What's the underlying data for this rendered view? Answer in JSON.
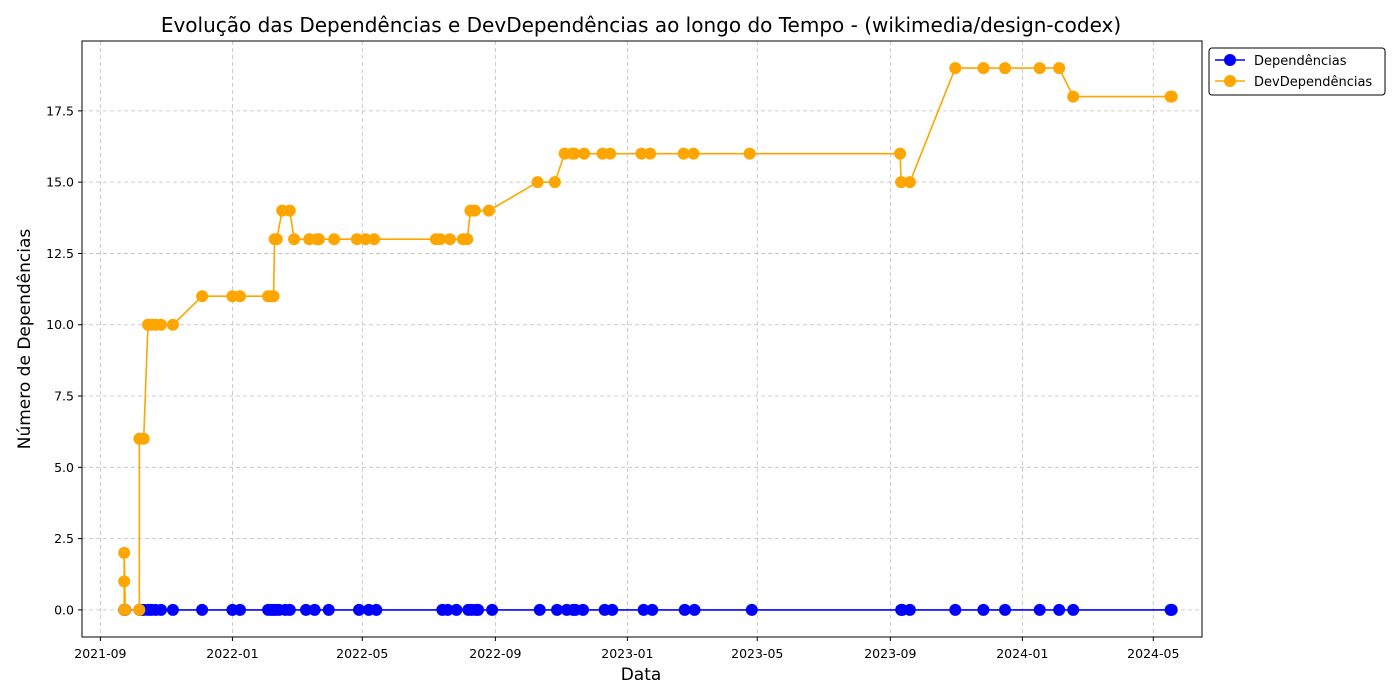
{
  "chart_data": {
    "type": "line",
    "title": "Evolução das Dependências e DevDependências ao longo do Tempo - (wikimedia/design-codex)",
    "xlabel": "Data",
    "ylabel": "Número de Dependências",
    "x_ticks": [
      "2021-09",
      "2022-01",
      "2022-05",
      "2022-09",
      "2023-01",
      "2023-05",
      "2023-09",
      "2024-01",
      "2024-05"
    ],
    "y_ticks": [
      "0.0",
      "2.5",
      "5.0",
      "7.5",
      "10.0",
      "12.5",
      "15.0",
      "17.5"
    ],
    "xlim": [
      "2021-08-15",
      "2024-06-15"
    ],
    "ylim": [
      -0.95,
      19.95
    ],
    "grid": true,
    "legend_position": "outside-top-right",
    "series": [
      {
        "name": "Dependências",
        "color": "#0000ff",
        "points": [
          [
            "2021-09-23",
            0
          ],
          [
            "2021-09-23",
            0
          ],
          [
            "2021-09-24",
            0
          ],
          [
            "2021-09-24",
            0
          ],
          [
            "2021-10-07",
            0
          ],
          [
            "2021-10-09",
            0
          ],
          [
            "2021-10-11",
            0
          ],
          [
            "2021-10-15",
            0
          ],
          [
            "2021-10-18",
            0
          ],
          [
            "2021-10-22",
            0
          ],
          [
            "2021-10-27",
            0
          ],
          [
            "2021-11-07",
            0
          ],
          [
            "2021-12-04",
            0
          ],
          [
            "2022-01-01",
            0
          ],
          [
            "2022-01-08",
            0
          ],
          [
            "2022-02-03",
            0
          ],
          [
            "2022-02-06",
            0
          ],
          [
            "2022-02-08",
            0
          ],
          [
            "2022-02-10",
            0
          ],
          [
            "2022-02-13",
            0
          ],
          [
            "2022-02-19",
            0
          ],
          [
            "2022-02-23",
            0
          ],
          [
            "2022-03-10",
            0
          ],
          [
            "2022-03-18",
            0
          ],
          [
            "2022-03-31",
            0
          ],
          [
            "2022-04-28",
            0
          ],
          [
            "2022-05-07",
            0
          ],
          [
            "2022-05-14",
            0
          ],
          [
            "2022-07-14",
            0
          ],
          [
            "2022-07-19",
            0
          ],
          [
            "2022-07-27",
            0
          ],
          [
            "2022-08-07",
            0
          ],
          [
            "2022-08-10",
            0
          ],
          [
            "2022-08-14",
            0
          ],
          [
            "2022-08-16",
            0
          ],
          [
            "2022-08-29",
            0
          ],
          [
            "2022-10-12",
            0
          ],
          [
            "2022-10-28",
            0
          ],
          [
            "2022-11-06",
            0
          ],
          [
            "2022-11-12",
            0
          ],
          [
            "2022-11-14",
            0
          ],
          [
            "2022-11-21",
            0
          ],
          [
            "2022-12-11",
            0
          ],
          [
            "2022-12-18",
            0
          ],
          [
            "2023-01-16",
            0
          ],
          [
            "2023-01-24",
            0
          ],
          [
            "2023-02-23",
            0
          ],
          [
            "2023-03-04",
            0
          ],
          [
            "2023-04-26",
            0
          ],
          [
            "2023-09-11",
            0
          ],
          [
            "2023-09-12",
            0
          ],
          [
            "2023-09-19",
            0
          ],
          [
            "2023-10-31",
            0
          ],
          [
            "2023-11-26",
            0
          ],
          [
            "2023-12-16",
            0
          ],
          [
            "2024-01-17",
            0
          ],
          [
            "2024-02-04",
            0
          ],
          [
            "2024-02-17",
            0
          ],
          [
            "2024-05-17",
            0
          ],
          [
            "2024-05-18",
            0
          ]
        ]
      },
      {
        "name": "DevDependências",
        "color": "#ffa500",
        "points": [
          [
            "2021-09-23",
            0
          ],
          [
            "2021-09-23",
            1
          ],
          [
            "2021-09-23",
            2
          ],
          [
            "2021-09-24",
            0
          ],
          [
            "2021-10-07",
            0
          ],
          [
            "2021-10-07",
            6
          ],
          [
            "2021-10-11",
            6
          ],
          [
            "2021-10-15",
            10
          ],
          [
            "2021-10-18",
            10
          ],
          [
            "2021-10-22",
            10
          ],
          [
            "2021-10-27",
            10
          ],
          [
            "2021-11-07",
            10
          ],
          [
            "2021-12-04",
            11
          ],
          [
            "2022-01-01",
            11
          ],
          [
            "2022-01-08",
            11
          ],
          [
            "2022-02-03",
            11
          ],
          [
            "2022-02-06",
            11
          ],
          [
            "2022-02-08",
            11
          ],
          [
            "2022-02-09",
            13
          ],
          [
            "2022-02-11",
            13
          ],
          [
            "2022-02-16",
            14
          ],
          [
            "2022-02-23",
            14
          ],
          [
            "2022-02-27",
            13
          ],
          [
            "2022-03-13",
            13
          ],
          [
            "2022-03-20",
            13
          ],
          [
            "2022-03-22",
            13
          ],
          [
            "2022-04-05",
            13
          ],
          [
            "2022-04-26",
            13
          ],
          [
            "2022-05-04",
            13
          ],
          [
            "2022-05-12",
            13
          ],
          [
            "2022-07-08",
            13
          ],
          [
            "2022-07-12",
            13
          ],
          [
            "2022-07-21",
            13
          ],
          [
            "2022-08-02",
            13
          ],
          [
            "2022-08-06",
            13
          ],
          [
            "2022-08-09",
            14
          ],
          [
            "2022-08-13",
            14
          ],
          [
            "2022-08-26",
            14
          ],
          [
            "2022-10-10",
            15
          ],
          [
            "2022-10-26",
            15
          ],
          [
            "2022-11-04",
            16
          ],
          [
            "2022-11-11",
            16
          ],
          [
            "2022-11-13",
            16
          ],
          [
            "2022-11-22",
            16
          ],
          [
            "2022-12-09",
            16
          ],
          [
            "2022-12-16",
            16
          ],
          [
            "2023-01-14",
            16
          ],
          [
            "2023-01-22",
            16
          ],
          [
            "2023-02-22",
            16
          ],
          [
            "2023-03-03",
            16
          ],
          [
            "2023-04-24",
            16
          ],
          [
            "2023-09-10",
            16
          ],
          [
            "2023-09-11",
            15
          ],
          [
            "2023-09-19",
            15
          ],
          [
            "2023-10-31",
            19
          ],
          [
            "2023-11-26",
            19
          ],
          [
            "2023-12-16",
            19
          ],
          [
            "2024-01-17",
            19
          ],
          [
            "2024-02-04",
            19
          ],
          [
            "2024-02-17",
            18
          ],
          [
            "2024-05-17",
            18
          ],
          [
            "2024-05-18",
            18
          ]
        ]
      }
    ]
  }
}
